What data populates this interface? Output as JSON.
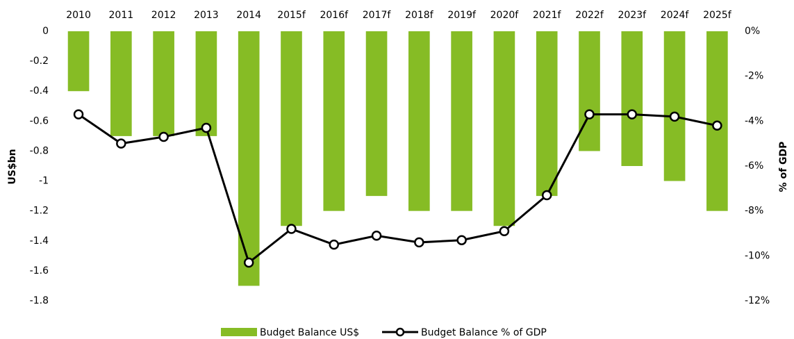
{
  "chart_data": {
    "type": "bar_line",
    "categories": [
      "2010",
      "2011",
      "2012",
      "2013",
      "2014",
      "2015f",
      "2016f",
      "2017f",
      "2018f",
      "2019f",
      "2020f",
      "2021f",
      "2022f",
      "2023f",
      "2024f",
      "2025f"
    ],
    "series": [
      {
        "name": "Budget Balance US$",
        "type": "bar",
        "color": "#86bc25",
        "values": [
          -0.4,
          -0.7,
          -0.7,
          -0.7,
          -1.7,
          -1.3,
          -1.2,
          -1.1,
          -1.2,
          -1.2,
          -1.3,
          -1.1,
          -0.8,
          -0.9,
          -1.0,
          -1.2
        ]
      },
      {
        "name": "Budget Balance % of GDP",
        "type": "line",
        "axis": "y2",
        "color": "#000000",
        "values": [
          -3.7,
          -5.0,
          -4.7,
          -4.3,
          -10.3,
          -8.8,
          -9.5,
          -9.1,
          -9.4,
          -9.3,
          -8.9,
          -7.3,
          -3.7,
          -3.7,
          -3.8,
          -4.2
        ]
      }
    ],
    "ylabel": "US$bn",
    "y2label": "% of GDP",
    "ylim": [
      -1.8,
      0
    ],
    "yticks": [
      0,
      -0.2,
      -0.4,
      -0.6,
      -0.8,
      -1,
      -1.2,
      -1.4,
      -1.6,
      -1.8
    ],
    "y2lim": [
      -12,
      0
    ],
    "y2ticks": [
      {
        "value": 0,
        "label": "0%"
      },
      {
        "value": -2,
        "label": "-2%"
      },
      {
        "value": -4,
        "label": "-4%"
      },
      {
        "value": -6,
        "label": "-6%"
      },
      {
        "value": -8,
        "label": "-8%"
      },
      {
        "value": -10,
        "label": "-10%"
      },
      {
        "value": -12,
        "label": "-12%"
      }
    ],
    "legend": "bottom"
  }
}
